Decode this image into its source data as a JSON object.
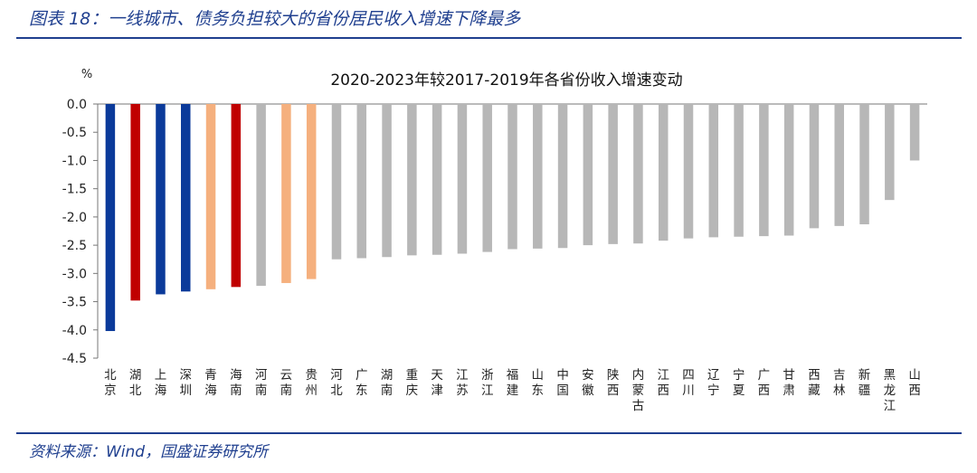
{
  "figure": {
    "title": "图表 18：一线城市、债务负担较大的省份居民收入增速下降最多",
    "source": "资料来源：Wind，国盛证券研究所"
  },
  "colors": {
    "first_tier_blue": "#0b3a9a",
    "high_debt_red": "#c00000",
    "orange": "#f5b07e",
    "other_gray": "#b7b7b7",
    "rule_blue": "#1f3f8f"
  },
  "chart_data": {
    "type": "bar",
    "title": "2020-2023年较2017-2019年各省份收入增速变动",
    "unit_label": "%",
    "ylim": [
      -4.5,
      0.0
    ],
    "yticks": [
      "0.0",
      "-0.5",
      "-1.0",
      "-1.5",
      "-2.0",
      "-2.5",
      "-3.0",
      "-3.5",
      "-4.0",
      "-4.5"
    ],
    "grid": false,
    "legend": "none",
    "categories": [
      "北京",
      "湖北",
      "上海",
      "深圳",
      "青海",
      "海南",
      "河南",
      "云南",
      "贵州",
      "河北",
      "广东",
      "湖南",
      "重庆",
      "天津",
      "江苏",
      "浙江",
      "福建",
      "山东",
      "中国",
      "安徽",
      "陕西",
      "内蒙古",
      "江西",
      "四川",
      "辽宁",
      "宁夏",
      "广西",
      "甘肃",
      "西藏",
      "吉林",
      "新疆",
      "黑龙江",
      "山西"
    ],
    "values": [
      -4.02,
      -3.48,
      -3.37,
      -3.32,
      -3.28,
      -3.24,
      -3.22,
      -3.17,
      -3.1,
      -2.75,
      -2.73,
      -2.71,
      -2.68,
      -2.67,
      -2.65,
      -2.62,
      -2.57,
      -2.56,
      -2.55,
      -2.5,
      -2.48,
      -2.47,
      -2.42,
      -2.38,
      -2.36,
      -2.35,
      -2.34,
      -2.33,
      -2.2,
      -2.16,
      -2.13,
      -1.7,
      -1.0
    ],
    "bar_colors": [
      "first_tier_blue",
      "high_debt_red",
      "first_tier_blue",
      "first_tier_blue",
      "orange",
      "high_debt_red",
      "other_gray",
      "orange",
      "orange",
      "other_gray",
      "other_gray",
      "other_gray",
      "other_gray",
      "other_gray",
      "other_gray",
      "other_gray",
      "other_gray",
      "other_gray",
      "other_gray",
      "other_gray",
      "other_gray",
      "other_gray",
      "other_gray",
      "other_gray",
      "other_gray",
      "other_gray",
      "other_gray",
      "other_gray",
      "other_gray",
      "other_gray",
      "other_gray",
      "other_gray",
      "other_gray"
    ]
  }
}
